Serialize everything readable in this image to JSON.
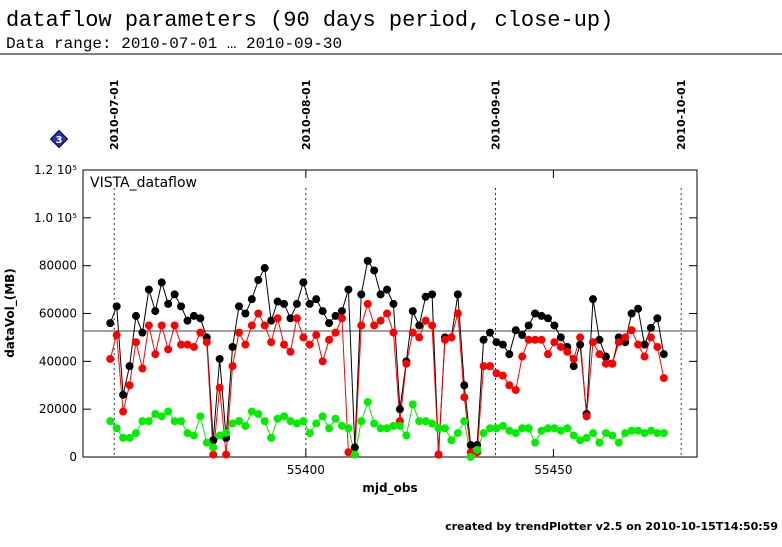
{
  "chart_data": {
    "type": "scatter",
    "title": "dataflow parameters (90 days period, close-up)",
    "subtitle": "Data range: 2010-07-01 … 2010-09-30",
    "inset_label": "VISTA_dataflow",
    "badge": "3",
    "x_label": "mjd_obs",
    "y_label": "dataVol_(MB)",
    "footer": "created by trendPlotter v2.5 on 2010-10-15T14:50:59",
    "xlim": [
      55355,
      55479
    ],
    "xticks": [
      55400,
      55450
    ],
    "ylim": [
      0,
      120000
    ],
    "yticks": [
      0,
      20000,
      40000,
      60000,
      80000,
      {
        "value": 100000,
        "label": "1.0 10⁵"
      },
      {
        "value": 120000,
        "label": "1.2 10⁵"
      }
    ],
    "hline": 52700,
    "date_lines": [
      {
        "x": 55361.3,
        "label": "2010-07-01"
      },
      {
        "x": 55400,
        "label": "2010-08-01"
      },
      {
        "x": 55438.3,
        "label": "2010-09-01"
      },
      {
        "x": 55475.8,
        "label": "2010-10-01"
      }
    ],
    "x": [
      55360.5,
      55361.8,
      55363.1,
      55364.4,
      55365.7,
      55367.0,
      55368.3,
      55369.6,
      55370.9,
      55372.2,
      55373.5,
      55374.8,
      55376.1,
      55377.4,
      55378.7,
      55380.0,
      55381.3,
      55382.6,
      55383.9,
      55385.2,
      55386.5,
      55387.8,
      55389.1,
      55390.4,
      55391.7,
      55393.0,
      55394.3,
      55395.6,
      55396.9,
      55398.2,
      55399.5,
      55400.8,
      55402.1,
      55403.4,
      55404.7,
      55406.0,
      55407.3,
      55408.6,
      55409.9,
      55411.2,
      55412.5,
      55413.8,
      55415.1,
      55416.4,
      55417.7,
      55419.0,
      55420.3,
      55421.6,
      55422.9,
      55424.2,
      55425.5,
      55426.8,
      55428.1,
      55429.4,
      55430.7,
      55432.0,
      55433.3,
      55434.6,
      55435.9,
      55437.2,
      55438.5,
      55439.8,
      55441.1,
      55442.4,
      55443.7,
      55445.0,
      55446.3,
      55447.6,
      55448.9,
      55450.2,
      55451.5,
      55452.8,
      55454.1,
      55455.4,
      55456.7,
      55458.0,
      55459.3,
      55460.6,
      55461.9,
      55463.2,
      55464.5,
      55465.8,
      55467.1,
      55468.4,
      55469.7,
      55471.0,
      55472.3
    ],
    "series": [
      {
        "color": "#000000",
        "values": [
          56000,
          63000,
          26000,
          38000,
          59000,
          52000,
          70000,
          61000,
          73000,
          64000,
          68000,
          63000,
          57000,
          59000,
          58000,
          50000,
          7000,
          41000,
          8000,
          46000,
          63000,
          60000,
          66000,
          74000,
          79000,
          57000,
          65000,
          64000,
          58000,
          64000,
          73000,
          64000,
          66000,
          61000,
          56000,
          59000,
          61000,
          70000,
          4000,
          68000,
          82000,
          78000,
          68000,
          70000,
          64000,
          20000,
          40000,
          61000,
          55000,
          67000,
          68000,
          1000,
          50000,
          50000,
          68000,
          30000,
          5000,
          5000,
          49000,
          52000,
          48000,
          47000,
          43000,
          53000,
          51000,
          55000,
          60000,
          59000,
          58000,
          55000,
          50000,
          46000,
          38000,
          47000,
          18000,
          66000,
          49000,
          42000,
          39000,
          50000,
          48000,
          60000,
          62000,
          47000,
          54000,
          58000,
          43000
        ]
      },
      {
        "color": "#ff0000",
        "values": [
          41000,
          51000,
          19000,
          30000,
          48000,
          37000,
          55000,
          43000,
          55000,
          45000,
          55000,
          47000,
          47000,
          46000,
          52000,
          48000,
          1000,
          29000,
          1000,
          38000,
          52000,
          47000,
          55000,
          60000,
          55000,
          48000,
          58000,
          47000,
          44000,
          58000,
          50000,
          47000,
          51000,
          40000,
          49000,
          52000,
          58000,
          2000,
          1000,
          55000,
          64000,
          55000,
          57000,
          60000,
          52000,
          15000,
          39000,
          52000,
          50000,
          57000,
          55000,
          1000,
          49000,
          50000,
          60000,
          25000,
          2000,
          2000,
          38000,
          38000,
          35000,
          34000,
          30000,
          28000,
          42000,
          49000,
          49000,
          49000,
          43000,
          48000,
          46000,
          44000,
          41000,
          50000,
          17000,
          48000,
          43000,
          39000,
          39000,
          48000,
          50000,
          53000,
          47000,
          42000,
          50000,
          46000,
          33000
        ]
      },
      {
        "color": "#00ee00",
        "values": [
          15000,
          12000,
          8000,
          8000,
          10000,
          15000,
          15000,
          18000,
          17000,
          19000,
          15000,
          15000,
          10000,
          9000,
          17000,
          6000,
          4000,
          9000,
          10000,
          14000,
          15000,
          13000,
          19000,
          18000,
          15000,
          8000,
          16000,
          17000,
          15000,
          14000,
          15000,
          10000,
          14000,
          17000,
          12000,
          16000,
          13000,
          12000,
          1000,
          15000,
          23000,
          14000,
          12000,
          12000,
          13000,
          13000,
          9000,
          22000,
          15000,
          15000,
          14000,
          12000,
          12000,
          7000,
          10000,
          15000,
          0,
          3000,
          10000,
          12000,
          12000,
          13000,
          11000,
          10000,
          12000,
          12000,
          6000,
          11000,
          12000,
          12000,
          11000,
          12000,
          9000,
          7000,
          8000,
          10000,
          6000,
          10000,
          9000,
          6000,
          10000,
          11000,
          11000,
          10000,
          11000,
          10000,
          10000
        ]
      }
    ]
  }
}
